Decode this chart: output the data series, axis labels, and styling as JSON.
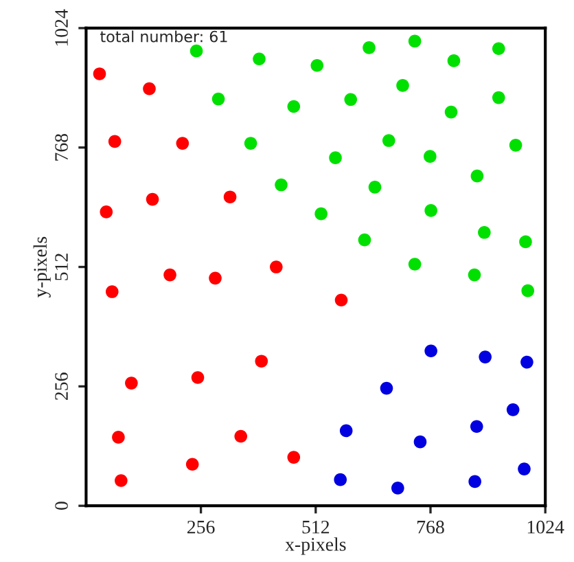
{
  "chart_data": {
    "type": "scatter",
    "xlabel": "x-pixels",
    "ylabel": "y-pixels",
    "annotations": [
      "total number: 61"
    ],
    "xlim": [
      0,
      1024
    ],
    "ylim": [
      0,
      1024
    ],
    "xticks": [
      256,
      512,
      768,
      1024
    ],
    "yticks": [
      0,
      256,
      512,
      768,
      1024
    ],
    "grid": false,
    "marker": "circle",
    "series": [
      {
        "color": "#ff0000",
        "x": [
          30,
          141,
          64,
          215,
          45,
          148,
          321,
          424,
          58,
          187,
          288,
          569,
          101,
          249,
          391,
          72,
          345,
          237,
          463,
          78
        ],
        "values": [
          926,
          894,
          781,
          777,
          630,
          657,
          662,
          512,
          459,
          495,
          488,
          441,
          263,
          275,
          310,
          147,
          149,
          89,
          104,
          54
        ]
      },
      {
        "color": "#00e000",
        "x": [
          246,
          386,
          515,
          631,
          733,
          820,
          920,
          295,
          463,
          590,
          706,
          814,
          920,
          367,
          556,
          675,
          767,
          958,
          435,
          524,
          644,
          769,
          872,
          621,
          888,
          980,
          733,
          866,
          985
        ],
        "values": [
          975,
          958,
          944,
          982,
          996,
          954,
          980,
          872,
          856,
          871,
          901,
          844,
          875,
          777,
          746,
          783,
          749,
          773,
          688,
          626,
          683,
          633,
          707,
          570,
          586,
          566,
          518,
          495,
          461
        ]
      },
      {
        "color": "#0000e0",
        "x": [
          769,
          890,
          983,
          670,
          952,
          580,
          871,
          745,
          977,
          567,
          695,
          867
        ],
        "values": [
          332,
          319,
          308,
          252,
          206,
          161,
          170,
          137,
          79,
          56,
          38,
          52
        ]
      }
    ]
  }
}
